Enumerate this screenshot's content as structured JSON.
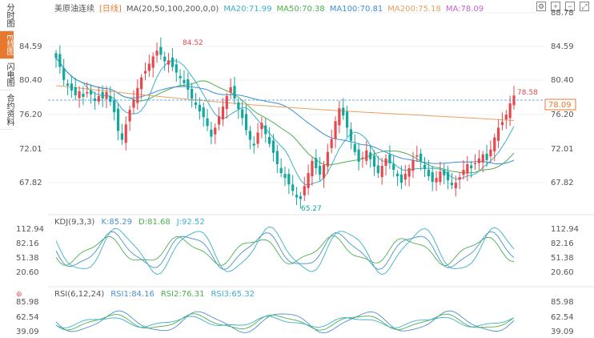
{
  "side_tabs": [
    "分时图",
    "E线图",
    "闪电图",
    "合约资料"
  ],
  "header": {
    "title": "美原油连续",
    "period": "[日线]",
    "ma_label": "MA(20,50,100,200,0,0)",
    "ma20": "MA20:71.99",
    "ma50": "MA50:70.38",
    "ma100": "MA100:70.81",
    "ma200": "MA200:75.18",
    "ma_extra": "MA:78.09"
  },
  "colors": {
    "up": "#e5484d",
    "down": "#13a89e",
    "ma20": "#3bb0c9",
    "ma50": "#4caf50",
    "ma100": "#3a8fd9",
    "ma200": "#e8a060",
    "kdj_k": "#4a90c8",
    "kdj_d": "#4caf50",
    "kdj_j": "#3bb0c9",
    "price_tag": "#e8782e"
  },
  "main_axis_labels": [
    "88.78",
    "84.59",
    "80.40",
    "76.20",
    "72.01",
    "67.82"
  ],
  "price_tag": "78.09",
  "annotations": {
    "high": "84.52",
    "low": "65.27",
    "last": "78.58"
  },
  "kdj": {
    "title": "KDJ(9,3,3)",
    "k": "K:85.29",
    "d": "D:81.68",
    "j": "J:92.52",
    "axis_labels": [
      "112.94",
      "82.16",
      "51.38",
      "20.60"
    ]
  },
  "rsi": {
    "title": "RSI(6,12,24)",
    "rsi1": "RSI1:84.16",
    "rsi2": "RSI2:76.31",
    "rsi3": "RSI3:65.32",
    "axis_labels": [
      "85.98",
      "62.54",
      "39.09"
    ]
  },
  "chart_data": {
    "type": "candlestick",
    "y_range": [
      65.27,
      84.52
    ],
    "closes": [
      83.2,
      82.1,
      80.5,
      79.8,
      79.2,
      78.6,
      79.1,
      78.4,
      79.0,
      78.7,
      77.9,
      78.5,
      78.2,
      79.0,
      77.8,
      76.5,
      74.2,
      73.1,
      75.0,
      76.8,
      78.1,
      79.5,
      80.8,
      81.6,
      82.5,
      83.4,
      84.1,
      83.6,
      82.8,
      82.9,
      82.1,
      81.4,
      80.7,
      80.1,
      79.3,
      78.2,
      77.4,
      76.6,
      75.9,
      74.8,
      73.5,
      74.6,
      76.0,
      77.2,
      78.5,
      79.6,
      78.2,
      76.9,
      75.8,
      74.3,
      73.1,
      72.4,
      74.0,
      75.2,
      73.8,
      72.6,
      71.5,
      70.1,
      69.0,
      68.4,
      67.6,
      66.8,
      66.0,
      65.8,
      67.4,
      69.0,
      70.5,
      69.6,
      68.8,
      70.0,
      71.6,
      73.2,
      75.4,
      77.0,
      76.1,
      74.6,
      73.0,
      71.6,
      70.4,
      70.9,
      71.8,
      70.7,
      69.8,
      69.0,
      69.9,
      70.8,
      70.2,
      69.4,
      68.6,
      67.8,
      68.9,
      69.6,
      70.6,
      71.2,
      70.5,
      69.5,
      68.6,
      67.9,
      68.4,
      69.2,
      68.7,
      68.1,
      67.5,
      67.8,
      68.5,
      69.4,
      70.1,
      69.6,
      70.2,
      70.8,
      71.3,
      70.6,
      71.9,
      73.4,
      74.6,
      75.3,
      76.2,
      77.6,
      78.58
    ]
  }
}
